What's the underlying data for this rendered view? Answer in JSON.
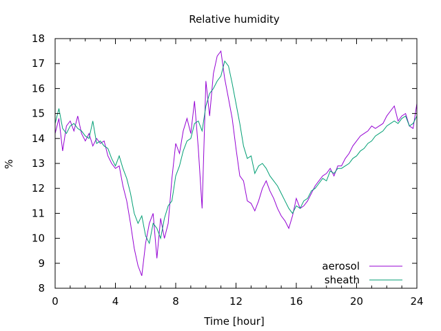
{
  "chart_data": {
    "type": "line",
    "title": "Relative humidity",
    "xlabel": "Time [hour]",
    "ylabel": "%",
    "xlim": [
      0,
      24
    ],
    "ylim": [
      8,
      18
    ],
    "xticks": [
      0,
      4,
      8,
      12,
      16,
      20,
      24
    ],
    "yticks": [
      8,
      9,
      10,
      11,
      12,
      13,
      14,
      15,
      16,
      17,
      18
    ],
    "grid": false,
    "legend_position": "bottom-right",
    "series": [
      {
        "name": "aerosol",
        "color": "#9400d3",
        "x": [
          0,
          0.25,
          0.5,
          0.75,
          1,
          1.25,
          1.5,
          1.75,
          2,
          2.25,
          2.5,
          2.75,
          3,
          3.25,
          3.5,
          3.75,
          4,
          4.25,
          4.5,
          4.75,
          5,
          5.25,
          5.5,
          5.75,
          6,
          6.25,
          6.5,
          6.75,
          7,
          7.25,
          7.5,
          7.75,
          8,
          8.25,
          8.5,
          8.75,
          9,
          9.25,
          9.5,
          9.75,
          10,
          10.25,
          10.5,
          10.75,
          11,
          11.25,
          11.5,
          11.75,
          12,
          12.25,
          12.5,
          12.75,
          13,
          13.25,
          13.5,
          13.75,
          14,
          14.25,
          14.5,
          14.75,
          15,
          15.25,
          15.5,
          15.75,
          16,
          16.25,
          16.5,
          16.75,
          17,
          17.25,
          17.5,
          17.75,
          18,
          18.25,
          18.5,
          18.75,
          19,
          19.25,
          19.5,
          19.75,
          20,
          20.25,
          20.5,
          20.75,
          21,
          21.25,
          21.5,
          21.75,
          22,
          22.25,
          22.5,
          22.75,
          23,
          23.25,
          23.5,
          23.75,
          24
        ],
        "values": [
          14.2,
          14.8,
          13.5,
          14.5,
          14.7,
          14.3,
          14.9,
          14.2,
          13.9,
          14.2,
          13.7,
          14.0,
          13.8,
          13.9,
          13.3,
          13.0,
          12.8,
          12.9,
          12.1,
          11.5,
          10.6,
          9.6,
          8.9,
          8.5,
          9.8,
          10.6,
          11.0,
          9.2,
          10.8,
          10.0,
          10.6,
          12.4,
          13.8,
          13.4,
          14.3,
          14.8,
          14.2,
          15.5,
          13.6,
          11.2,
          16.3,
          14.9,
          16.6,
          17.3,
          17.5,
          16.4,
          15.6,
          14.8,
          13.6,
          12.5,
          12.3,
          11.5,
          11.4,
          11.1,
          11.5,
          12.0,
          12.3,
          11.9,
          11.6,
          11.2,
          10.9,
          10.7,
          10.4,
          10.9,
          11.6,
          11.2,
          11.3,
          11.5,
          11.8,
          12.1,
          12.3,
          12.5,
          12.6,
          12.8,
          12.5,
          12.9,
          12.9,
          13.2,
          13.4,
          13.7,
          13.9,
          14.1,
          14.2,
          14.3,
          14.5,
          14.4,
          14.5,
          14.6,
          14.9,
          15.1,
          15.3,
          14.7,
          14.9,
          15.0,
          14.5,
          14.4,
          15.4
        ]
      },
      {
        "name": "sheath",
        "color": "#009e73",
        "x": [
          0,
          0.25,
          0.5,
          0.75,
          1,
          1.25,
          1.5,
          1.75,
          2,
          2.25,
          2.5,
          2.75,
          3,
          3.25,
          3.5,
          3.75,
          4,
          4.25,
          4.5,
          4.75,
          5,
          5.25,
          5.5,
          5.75,
          6,
          6.25,
          6.5,
          6.75,
          7,
          7.25,
          7.5,
          7.75,
          8,
          8.25,
          8.5,
          8.75,
          9,
          9.25,
          9.5,
          9.75,
          10,
          10.25,
          10.5,
          10.75,
          11,
          11.25,
          11.5,
          11.75,
          12,
          12.25,
          12.5,
          12.75,
          13,
          13.25,
          13.5,
          13.75,
          14,
          14.25,
          14.5,
          14.75,
          15,
          15.25,
          15.5,
          15.75,
          16,
          16.25,
          16.5,
          16.75,
          17,
          17.25,
          17.5,
          17.75,
          18,
          18.25,
          18.5,
          18.75,
          19,
          19.25,
          19.5,
          19.75,
          20,
          20.25,
          20.5,
          20.75,
          21,
          21.25,
          21.5,
          21.75,
          22,
          22.25,
          22.5,
          22.75,
          23,
          23.25,
          23.5,
          23.75,
          24
        ],
        "values": [
          14.6,
          15.2,
          14.4,
          14.2,
          14.5,
          14.6,
          14.4,
          14.3,
          14.1,
          14.0,
          14.7,
          13.8,
          13.9,
          13.7,
          13.6,
          13.2,
          12.9,
          13.3,
          12.8,
          12.4,
          11.8,
          11.0,
          10.6,
          10.9,
          10.1,
          9.8,
          10.6,
          10.4,
          10.0,
          10.8,
          11.3,
          11.5,
          12.5,
          12.9,
          13.5,
          13.9,
          14.0,
          14.6,
          14.7,
          14.3,
          15.3,
          15.8,
          16.0,
          16.3,
          16.5,
          17.1,
          16.9,
          16.2,
          15.4,
          14.6,
          13.7,
          13.2,
          13.3,
          12.6,
          12.9,
          13.0,
          12.8,
          12.5,
          12.3,
          12.1,
          11.8,
          11.5,
          11.2,
          11.0,
          11.3,
          11.2,
          11.5,
          11.6,
          11.9,
          12.0,
          12.2,
          12.4,
          12.3,
          12.7,
          12.6,
          12.8,
          12.8,
          12.9,
          13.0,
          13.2,
          13.3,
          13.5,
          13.6,
          13.8,
          13.9,
          14.1,
          14.2,
          14.3,
          14.5,
          14.6,
          14.7,
          14.6,
          14.8,
          14.9,
          14.5,
          14.6,
          14.9
        ]
      }
    ]
  }
}
